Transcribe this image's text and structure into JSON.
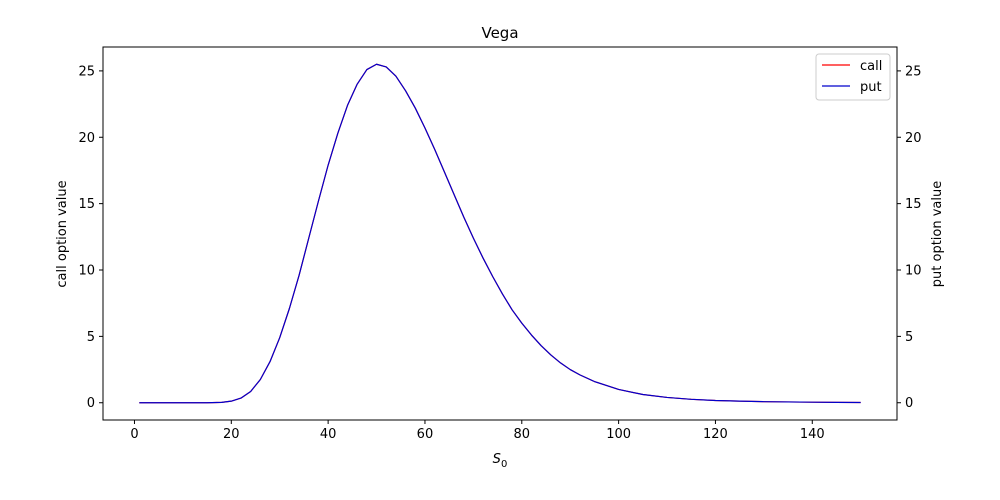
{
  "chart_data": {
    "type": "line",
    "title": "Vega",
    "xlabel": "S",
    "xlabel_subscript": "0",
    "ylabel_left": "call option value",
    "ylabel_right": "put option value",
    "xlim": [
      -6.5,
      157.5
    ],
    "ylim": [
      -1.3,
      26.8
    ],
    "x_ticks": [
      0,
      20,
      40,
      60,
      80,
      100,
      120,
      140
    ],
    "y_ticks": [
      0,
      5,
      10,
      15,
      20,
      25
    ],
    "grid": false,
    "legend_position": "top-right",
    "x": [
      1,
      10,
      15,
      18,
      20,
      22,
      24,
      26,
      28,
      30,
      32,
      34,
      36,
      38,
      40,
      42,
      44,
      46,
      48,
      50,
      52,
      54,
      56,
      58,
      60,
      62,
      64,
      66,
      68,
      70,
      72,
      74,
      76,
      78,
      80,
      82,
      84,
      86,
      88,
      90,
      92,
      95,
      100,
      105,
      110,
      115,
      120,
      125,
      130,
      135,
      140,
      145,
      150
    ],
    "series": [
      {
        "name": "call",
        "color": "#ff0000",
        "axis": "left",
        "values": [
          0.0,
          0.0,
          0.0,
          0.03,
          0.12,
          0.35,
          0.85,
          1.75,
          3.1,
          4.9,
          7.1,
          9.6,
          12.4,
          15.2,
          17.9,
          20.3,
          22.4,
          24.0,
          25.1,
          25.5,
          25.3,
          24.6,
          23.5,
          22.2,
          20.7,
          19.1,
          17.4,
          15.7,
          14.0,
          12.4,
          10.9,
          9.5,
          8.2,
          7.0,
          6.0,
          5.1,
          4.3,
          3.6,
          3.0,
          2.5,
          2.1,
          1.6,
          1.0,
          0.62,
          0.4,
          0.26,
          0.17,
          0.12,
          0.08,
          0.06,
          0.04,
          0.03,
          0.02
        ]
      },
      {
        "name": "put",
        "color": "#0000cc",
        "axis": "right",
        "values": [
          0.0,
          0.0,
          0.0,
          0.03,
          0.12,
          0.35,
          0.85,
          1.75,
          3.1,
          4.9,
          7.1,
          9.6,
          12.4,
          15.2,
          17.9,
          20.3,
          22.4,
          24.0,
          25.1,
          25.5,
          25.3,
          24.6,
          23.5,
          22.2,
          20.7,
          19.1,
          17.4,
          15.7,
          14.0,
          12.4,
          10.9,
          9.5,
          8.2,
          7.0,
          6.0,
          5.1,
          4.3,
          3.6,
          3.0,
          2.5,
          2.1,
          1.6,
          1.0,
          0.62,
          0.4,
          0.26,
          0.17,
          0.12,
          0.08,
          0.06,
          0.04,
          0.03,
          0.02
        ]
      }
    ]
  }
}
